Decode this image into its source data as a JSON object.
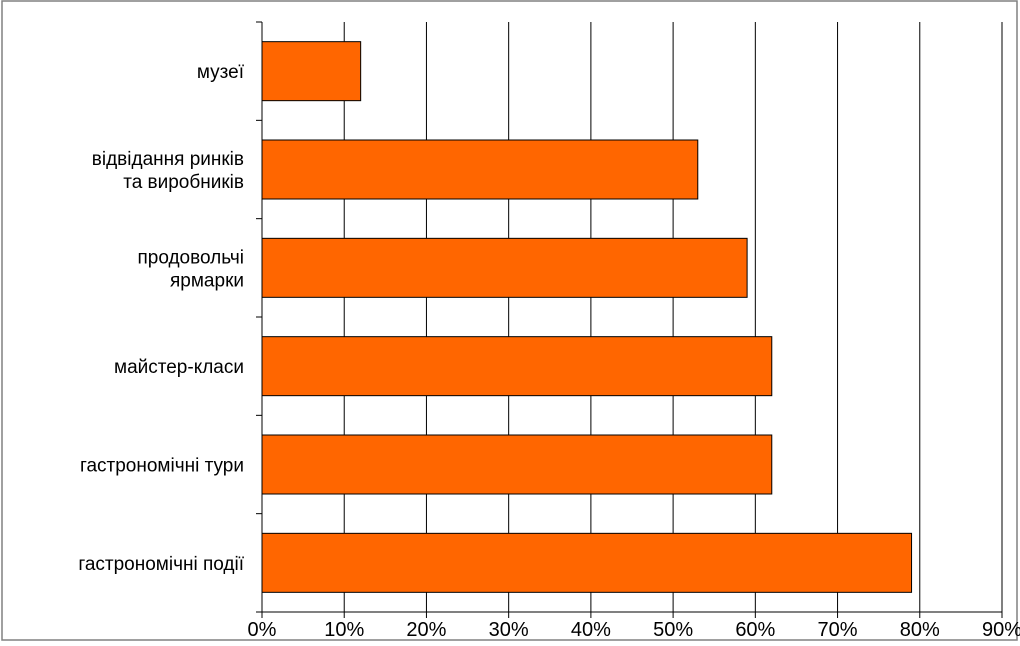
{
  "chart_data": {
    "type": "bar",
    "orientation": "horizontal",
    "categories": [
      [
        "музеї"
      ],
      [
        "відвідання ринків",
        "та виробників"
      ],
      [
        "продовольчі",
        "ярмарки"
      ],
      [
        "майстер-класи"
      ],
      [
        "гастрономічні тури"
      ],
      [
        "гастрономічні події"
      ]
    ],
    "values": [
      12,
      53,
      59,
      62,
      62,
      79
    ],
    "value_unit": "%",
    "xlim": [
      0,
      90
    ],
    "x_ticks": [
      "0%",
      "10%",
      "20%",
      "30%",
      "40%",
      "50%",
      "60%",
      "70%",
      "80%",
      "90%"
    ],
    "title": "",
    "xlabel": "",
    "ylabel": "",
    "grid": "vertical",
    "legend": "none",
    "colors": {
      "bar_fill": "#ff6600",
      "bar_stroke": "#000000",
      "grid": "#000000",
      "border": "#808080"
    }
  }
}
